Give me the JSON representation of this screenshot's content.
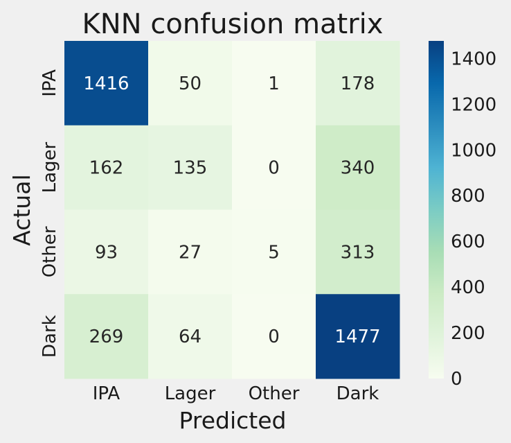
{
  "chart_data": {
    "type": "heatmap",
    "title": "KNN confusion matrix",
    "xlabel": "Predicted",
    "ylabel": "Actual",
    "x_categories": [
      "IPA",
      "Lager",
      "Other",
      "Dark"
    ],
    "y_categories": [
      "IPA",
      "Lager",
      "Other",
      "Dark"
    ],
    "values": [
      [
        1416,
        50,
        1,
        178
      ],
      [
        162,
        135,
        0,
        340
      ],
      [
        93,
        27,
        5,
        313
      ],
      [
        269,
        64,
        0,
        1477
      ]
    ],
    "colormap": "GnBu",
    "vmin": 0,
    "vmax": 1477,
    "colorbar_ticks": [
      0,
      200,
      400,
      600,
      800,
      1000,
      1200,
      1400
    ],
    "colorbar_stops": [
      "#f7fcf0",
      "#e0f3db",
      "#ccebc5",
      "#a8ddb5",
      "#7bccc4",
      "#4eb3d3",
      "#2b8cbe",
      "#0868ac",
      "#084081"
    ]
  }
}
